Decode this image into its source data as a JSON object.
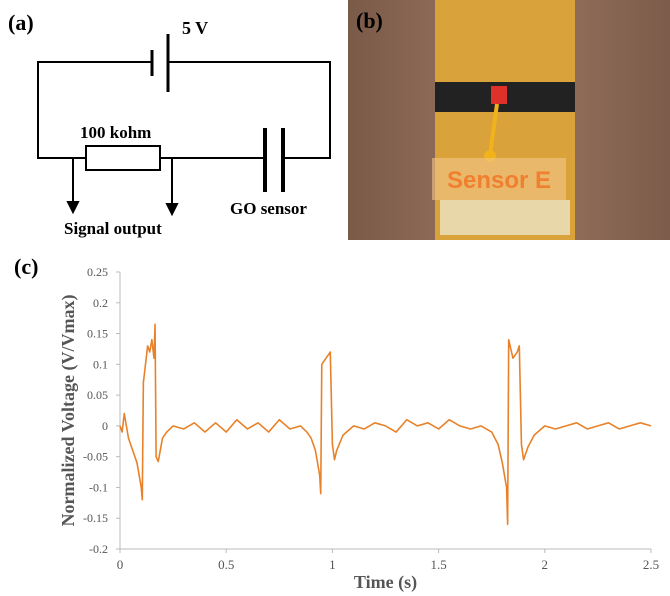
{
  "panels": {
    "a": {
      "label": "(a)",
      "source": "5 V",
      "resistor": "100 kohm",
      "output": "Signal output",
      "sensor": "GO sensor"
    },
    "b": {
      "label": "(b)",
      "sensor_label": "Sensor E"
    },
    "c": {
      "label": "(c)"
    }
  },
  "chart_data": {
    "type": "line",
    "xlabel": "Time (s)",
    "ylabel": "Normalized Voltage (V/Vmax)",
    "color": "#e8822a",
    "x": [
      0,
      0.01,
      0.02,
      0.04,
      0.06,
      0.08,
      0.1,
      0.105,
      0.11,
      0.12,
      0.13,
      0.14,
      0.15,
      0.16,
      0.165,
      0.17,
      0.18,
      0.2,
      0.22,
      0.25,
      0.3,
      0.35,
      0.4,
      0.45,
      0.5,
      0.55,
      0.6,
      0.65,
      0.7,
      0.75,
      0.8,
      0.85,
      0.88,
      0.9,
      0.92,
      0.94,
      0.945,
      0.95,
      0.97,
      0.99,
      1.0,
      1.01,
      1.02,
      1.05,
      1.1,
      1.15,
      1.2,
      1.25,
      1.3,
      1.35,
      1.4,
      1.45,
      1.5,
      1.55,
      1.6,
      1.65,
      1.7,
      1.75,
      1.78,
      1.8,
      1.82,
      1.825,
      1.83,
      1.85,
      1.87,
      1.88,
      1.89,
      1.9,
      1.92,
      1.95,
      2.0,
      2.05,
      2.1,
      2.15,
      2.2,
      2.25,
      2.3,
      2.35,
      2.4,
      2.45,
      2.5
    ],
    "values": [
      0,
      -0.01,
      0.02,
      -0.02,
      -0.04,
      -0.06,
      -0.1,
      -0.12,
      0.07,
      0.1,
      0.13,
      0.12,
      0.14,
      0.11,
      0.165,
      -0.05,
      -0.058,
      -0.02,
      -0.01,
      0.0,
      -0.005,
      0.005,
      -0.01,
      0.005,
      -0.01,
      0.01,
      -0.005,
      0.005,
      -0.01,
      0.01,
      -0.005,
      0.0,
      -0.01,
      -0.02,
      -0.04,
      -0.08,
      -0.11,
      0.1,
      0.11,
      0.12,
      -0.03,
      -0.055,
      -0.04,
      -0.015,
      0.0,
      -0.005,
      0.005,
      0.0,
      -0.01,
      0.01,
      0.0,
      0.005,
      -0.005,
      0.01,
      0.0,
      -0.005,
      0.0,
      -0.01,
      -0.03,
      -0.06,
      -0.1,
      -0.16,
      0.14,
      0.11,
      0.12,
      0.13,
      -0.03,
      -0.055,
      -0.035,
      -0.015,
      0.0,
      -0.005,
      0.0,
      0.005,
      -0.005,
      0.0,
      0.005,
      -0.005,
      0.0,
      0.005,
      0.0
    ],
    "xlim": [
      0,
      2.5
    ],
    "ylim": [
      -0.2,
      0.25
    ],
    "xticks": [
      0,
      0.5,
      1,
      1.5,
      2,
      2.5
    ],
    "yticks": [
      0.25,
      0.2,
      0.15,
      0.1,
      0.05,
      0,
      -0.05,
      -0.1,
      -0.15,
      -0.2
    ]
  }
}
